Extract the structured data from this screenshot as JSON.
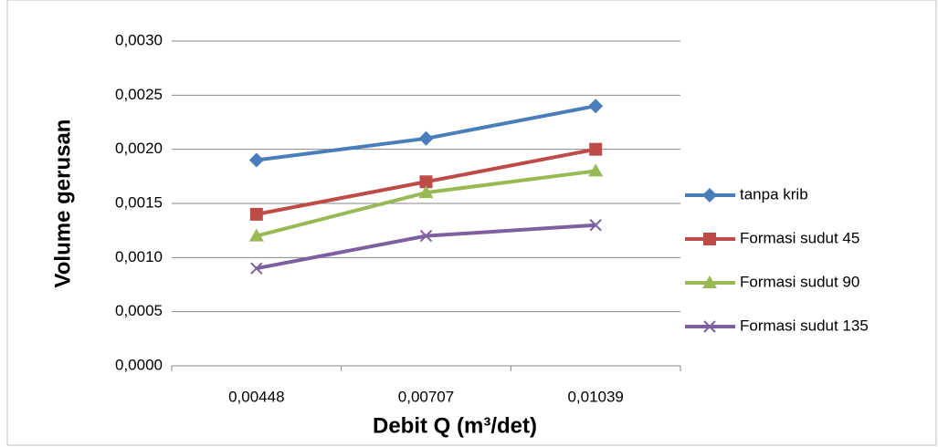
{
  "chart_data": {
    "type": "line",
    "x_label": "Debit Q (m³/det)",
    "y_label": "Volume gerusan",
    "categories": [
      "0,00448",
      "0,00707",
      "0,01039"
    ],
    "series": [
      {
        "name": "tanpa krib",
        "color": "#4a7ebb",
        "marker": "diamond",
        "values": [
          0.0019,
          0.0021,
          0.0024
        ]
      },
      {
        "name": "Formasi sudut 45",
        "color": "#be4b48",
        "marker": "square",
        "values": [
          0.0014,
          0.0017,
          0.002
        ]
      },
      {
        "name": "Formasi sudut 90",
        "color": "#98b954",
        "marker": "triangle",
        "values": [
          0.0012,
          0.0016,
          0.0018
        ]
      },
      {
        "name": "Formasi sudut 135",
        "color": "#7d60a0",
        "marker": "x",
        "values": [
          0.0009,
          0.0012,
          0.0013
        ]
      }
    ],
    "ylim": [
      0,
      0.003
    ],
    "yticks": [
      {
        "value": 0,
        "label": "0,0000"
      },
      {
        "value": 0.0005,
        "label": "0,0005"
      },
      {
        "value": 0.001,
        "label": "0,0010"
      },
      {
        "value": 0.0015,
        "label": "0,0015"
      },
      {
        "value": 0.002,
        "label": "0,0020"
      },
      {
        "value": 0.0025,
        "label": "0,0025"
      },
      {
        "value": 0.003,
        "label": "0,0030"
      }
    ],
    "grid": true,
    "legend": "right"
  }
}
